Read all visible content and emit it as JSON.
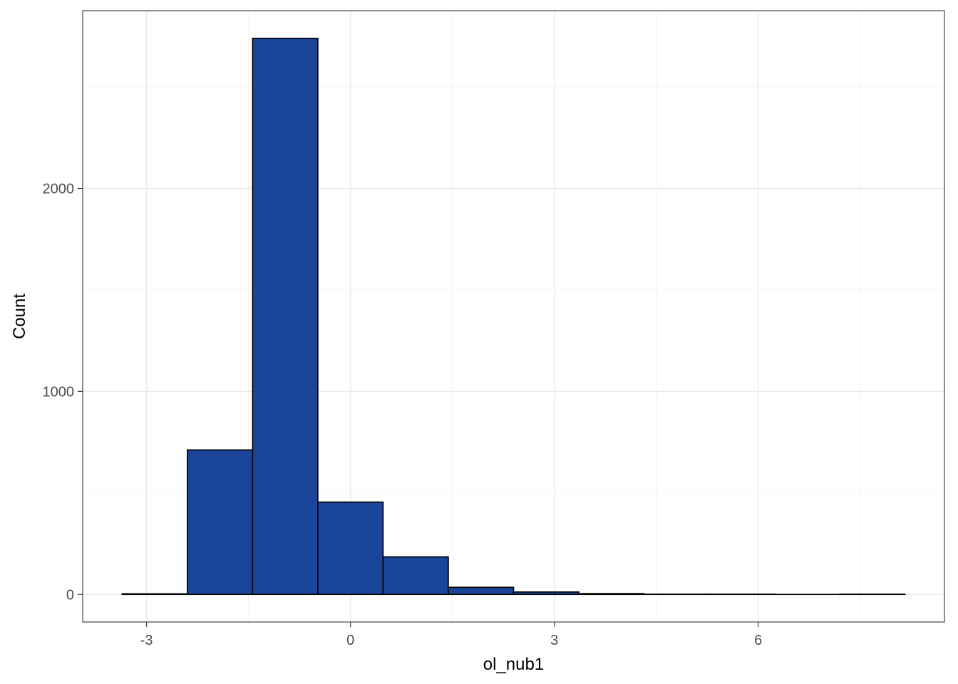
{
  "chart_data": {
    "type": "bar",
    "title": "",
    "xlabel": "ol_nub1",
    "ylabel": "Count",
    "bin_width": 0.96,
    "bins": [
      {
        "x_start": -3.36,
        "x_end": -2.4,
        "count": 3
      },
      {
        "x_start": -2.4,
        "x_end": -1.44,
        "count": 712
      },
      {
        "x_start": -1.44,
        "x_end": -0.48,
        "count": 2740
      },
      {
        "x_start": -0.48,
        "x_end": 0.48,
        "count": 455
      },
      {
        "x_start": 0.48,
        "x_end": 1.44,
        "count": 185
      },
      {
        "x_start": 1.44,
        "x_end": 2.4,
        "count": 35
      },
      {
        "x_start": 2.4,
        "x_end": 3.36,
        "count": 12
      },
      {
        "x_start": 3.36,
        "x_end": 4.32,
        "count": 4
      },
      {
        "x_start": 4.32,
        "x_end": 5.28,
        "count": 1
      },
      {
        "x_start": 5.28,
        "x_end": 6.24,
        "count": 1
      },
      {
        "x_start": 6.24,
        "x_end": 7.2,
        "count": 0
      },
      {
        "x_start": 7.2,
        "x_end": 8.16,
        "count": 1
      }
    ],
    "xlim": [
      -3.94,
      8.74
    ],
    "ylim": [
      -136,
      2876
    ],
    "x_ticks": [
      -3,
      0,
      3,
      6
    ],
    "x_tick_labels": [
      "-3",
      "0",
      "3",
      "6"
    ],
    "y_ticks": [
      0,
      1000,
      2000
    ],
    "y_tick_labels": [
      "0",
      "1000",
      "2000"
    ],
    "x_minor_grid": [
      -1.5,
      1.5,
      4.5,
      7.5
    ],
    "y_minor_grid": [
      500,
      1500,
      2500
    ],
    "grid": true,
    "legend": "none",
    "colors": {
      "bar_fill": "#1A4599",
      "bar_outline": "#000000",
      "grid_major": "#EBEBEB",
      "grid_minor": "#F4F4F4",
      "panel_border": "#333333"
    }
  }
}
